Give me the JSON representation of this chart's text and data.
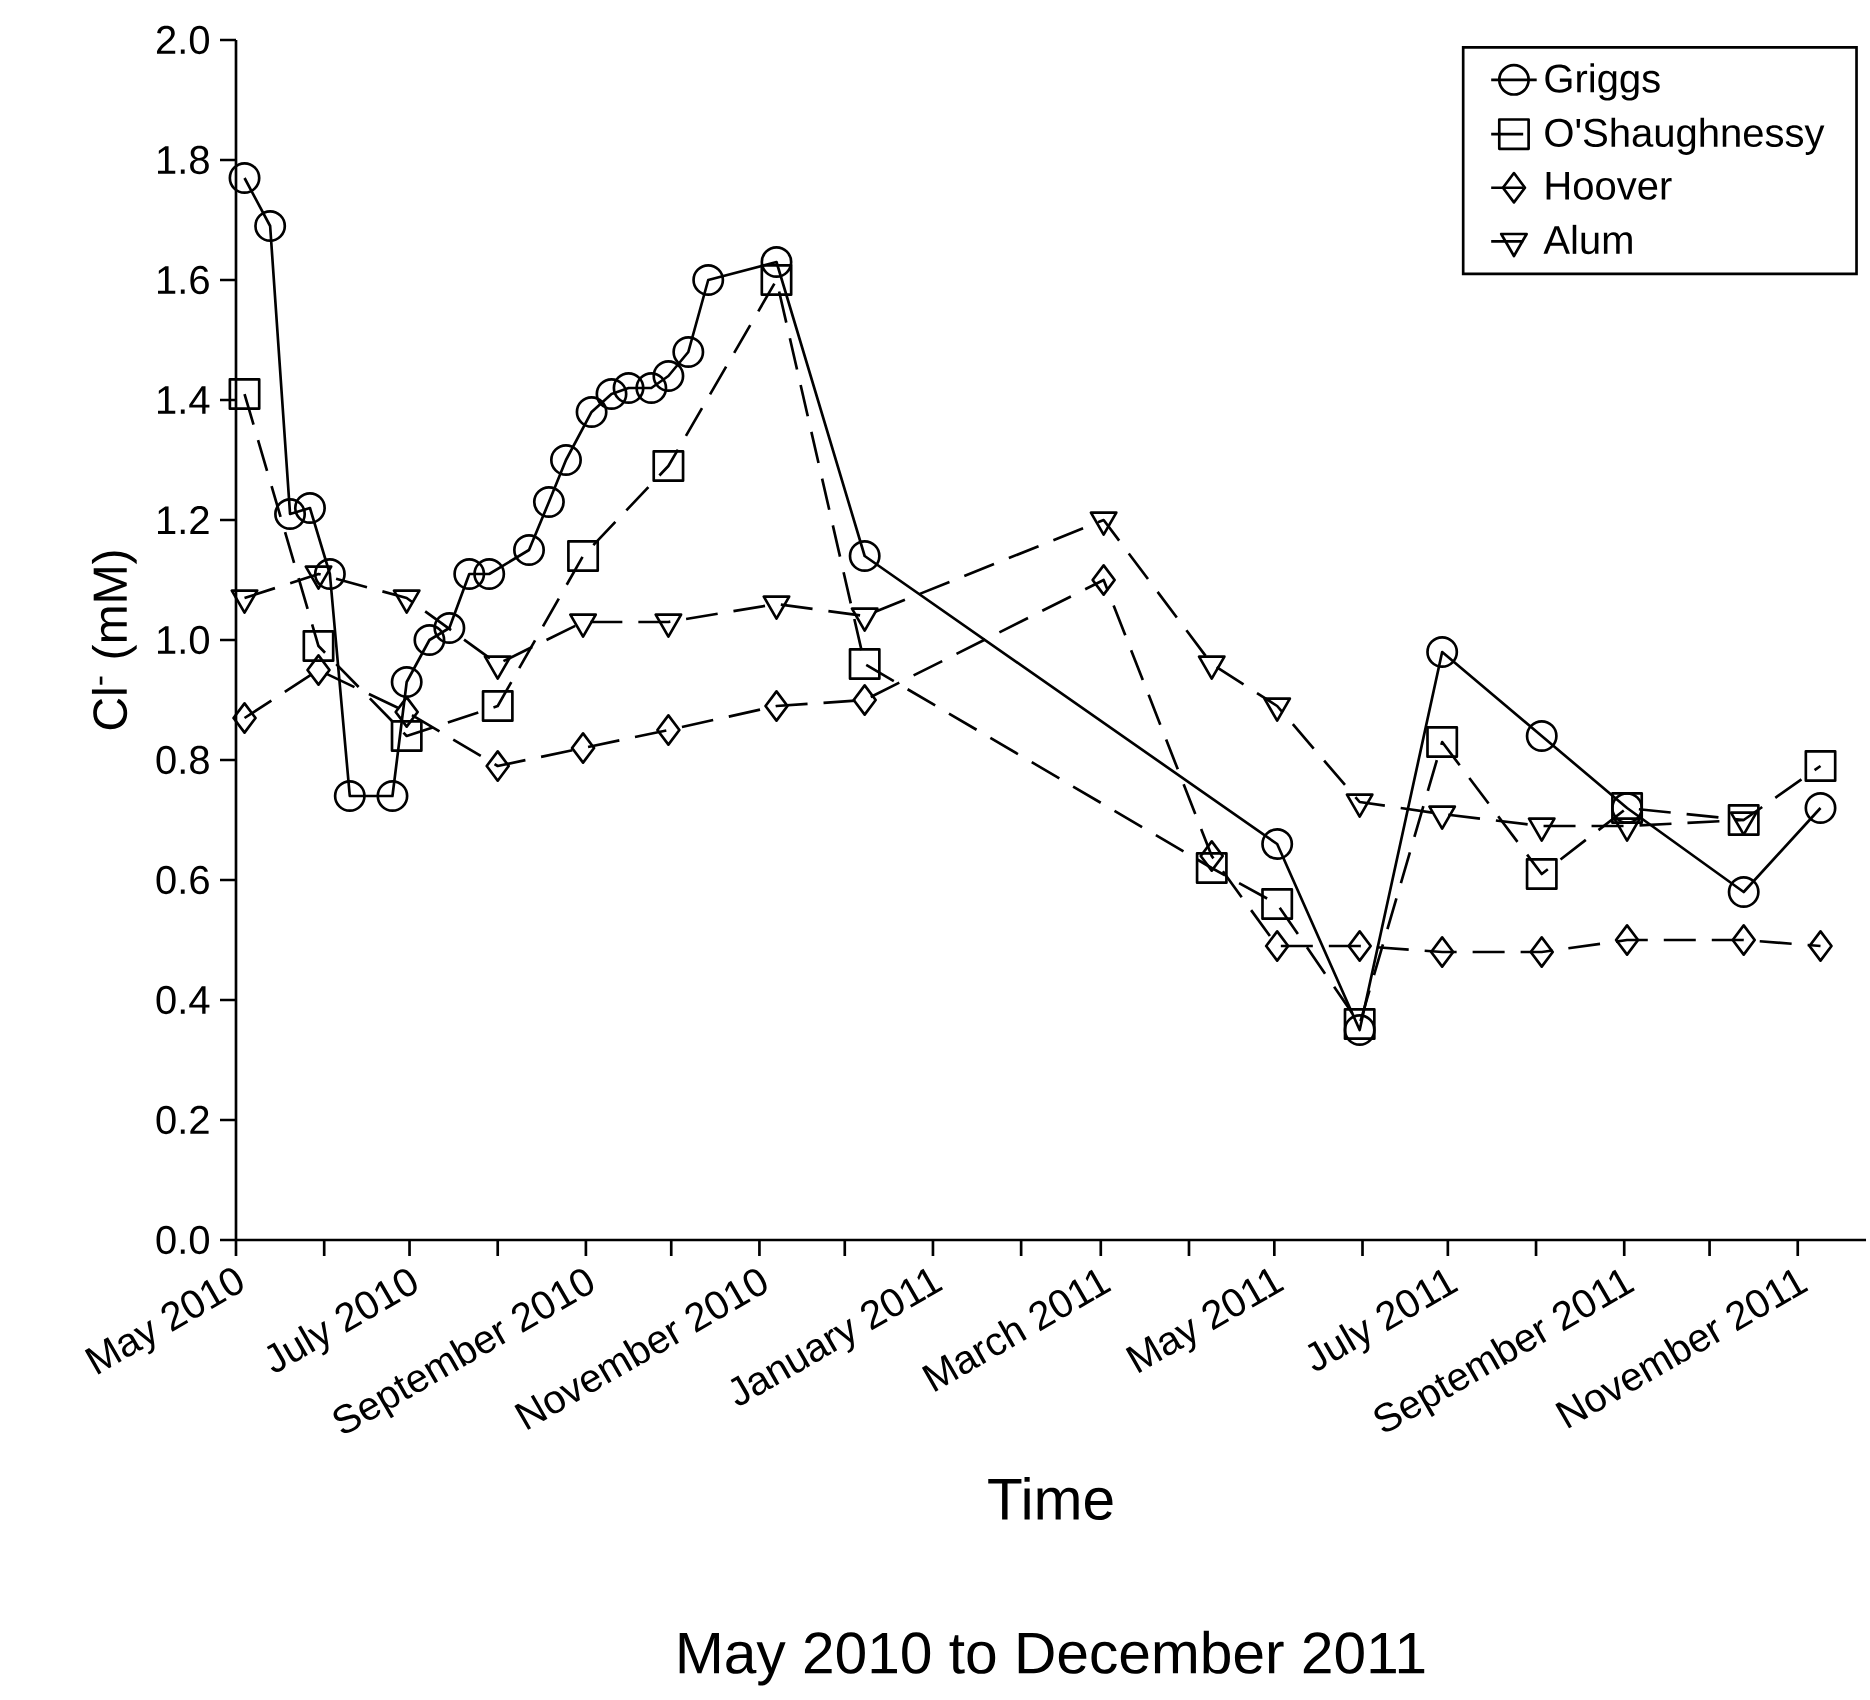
{
  "chart_data": {
    "type": "line",
    "xlabel": "Time",
    "ylabel": "Cl$^{-}$ (mM)",
    "annotations": [
      "May 2010 to December 2011"
    ],
    "xlim": [
      "2010-05-01",
      "2011-11-25"
    ],
    "xticks": [
      {
        "value": "2010-05-01",
        "label": "May 2010"
      },
      {
        "value": "2010-06-01",
        "label": null
      },
      {
        "value": "2010-07-01",
        "label": "July 2010"
      },
      {
        "value": "2010-08-01",
        "label": null
      },
      {
        "value": "2010-09-01",
        "label": "September 2010"
      },
      {
        "value": "2010-10-01",
        "label": null
      },
      {
        "value": "2010-11-01",
        "label": "November 2010"
      },
      {
        "value": "2010-12-01",
        "label": null
      },
      {
        "value": "2011-01-01",
        "label": "January 2011"
      },
      {
        "value": "2011-02-01",
        "label": null
      },
      {
        "value": "2011-03-01",
        "label": "March 2011"
      },
      {
        "value": "2011-04-01",
        "label": null
      },
      {
        "value": "2011-05-01",
        "label": "May 2011"
      },
      {
        "value": "2011-06-01",
        "label": null
      },
      {
        "value": "2011-07-01",
        "label": "July 2011"
      },
      {
        "value": "2011-08-01",
        "label": null
      },
      {
        "value": "2011-09-01",
        "label": "September 2011"
      },
      {
        "value": "2011-10-01",
        "label": null
      },
      {
        "value": "2011-11-01",
        "label": "November 2011"
      }
    ],
    "ylim": [
      0,
      2
    ],
    "yticks": [
      {
        "value": 0,
        "label": "0.0"
      },
      0.2,
      0.4,
      0.6,
      0.8,
      {
        "value": 1,
        "label": "1.0"
      },
      1.2,
      1.4,
      1.6,
      1.8,
      {
        "value": 2,
        "label": "2.0"
      }
    ],
    "grid": false,
    "legend": "top right",
    "series": [
      {
        "name": "Griggs",
        "color": "#000000",
        "marker": "circle",
        "line_style": "solid",
        "x": [
          "2010-05-04",
          "2010-05-13",
          "2010-05-20",
          "2010-05-27",
          "2010-06-03",
          "2010-06-10",
          "2010-06-25",
          "2010-06-30",
          "2010-07-08",
          "2010-07-15",
          "2010-07-22",
          "2010-07-29",
          "2010-08-12",
          "2010-08-19",
          "2010-08-25",
          "2010-09-03",
          "2010-09-10",
          "2010-09-16",
          "2010-09-24",
          "2010-09-30",
          "2010-10-07",
          "2010-10-14",
          "2010-11-07",
          "2010-12-08",
          "2011-05-02",
          "2011-05-31",
          "2011-06-29",
          "2011-08-03",
          "2011-09-02",
          "2011-10-13",
          "2011-11-09"
        ],
        "values": [
          1.77,
          1.69,
          1.21,
          1.22,
          1.11,
          0.74,
          0.74,
          0.93,
          1.0,
          1.02,
          1.11,
          1.11,
          1.15,
          1.23,
          1.3,
          1.38,
          1.41,
          1.42,
          1.42,
          1.44,
          1.48,
          1.6,
          1.63,
          1.14,
          0.66,
          0.35,
          0.98,
          0.84,
          0.72,
          0.58,
          0.72
        ]
      },
      {
        "name": "O'Shaughnessy",
        "color": "#000000",
        "marker": "square",
        "line_style": "dashed",
        "x": [
          "2010-05-04",
          "2010-05-30",
          "2010-06-30",
          "2010-08-01",
          "2010-08-31",
          "2010-09-30",
          "2010-11-07",
          "2010-12-08",
          "2011-04-09",
          "2011-05-02",
          "2011-05-31",
          "2011-06-29",
          "2011-08-03",
          "2011-09-02",
          "2011-10-13",
          "2011-11-09"
        ],
        "values": [
          1.41,
          0.99,
          0.84,
          0.89,
          1.14,
          1.29,
          1.6,
          0.96,
          0.62,
          0.56,
          0.36,
          0.83,
          0.61,
          0.72,
          0.7,
          0.79
        ]
      },
      {
        "name": "Hoover",
        "color": "#000000",
        "marker": "diamond",
        "line_style": "dashed",
        "x": [
          "2010-05-04",
          "2010-05-30",
          "2010-06-30",
          "2010-08-01",
          "2010-08-31",
          "2010-09-30",
          "2010-11-07",
          "2010-12-08",
          "2011-03-02",
          "2011-04-09",
          "2011-05-02",
          "2011-05-31",
          "2011-06-29",
          "2011-08-03",
          "2011-09-02",
          "2011-10-13",
          "2011-11-09"
        ],
        "values": [
          0.87,
          0.95,
          0.88,
          0.79,
          0.82,
          0.85,
          0.89,
          0.9,
          1.1,
          0.64,
          0.49,
          0.49,
          0.48,
          0.48,
          0.5,
          0.5,
          0.49
        ]
      },
      {
        "name": "Alum",
        "color": "#000000",
        "marker": "triangle",
        "line_style": "dashed",
        "x": [
          "2010-05-04",
          "2010-05-30",
          "2010-06-30",
          "2010-08-01",
          "2010-08-31",
          "2010-09-30",
          "2010-11-07",
          "2010-12-08",
          "2011-03-02",
          "2011-04-09",
          "2011-05-02",
          "2011-05-31",
          "2011-06-29",
          "2011-08-03",
          "2011-09-02",
          "2011-10-13"
        ],
        "values": [
          1.07,
          1.11,
          1.07,
          0.96,
          1.03,
          1.03,
          1.06,
          1.04,
          1.2,
          0.96,
          0.89,
          0.73,
          0.71,
          0.69,
          0.69,
          0.7
        ]
      }
    ]
  }
}
